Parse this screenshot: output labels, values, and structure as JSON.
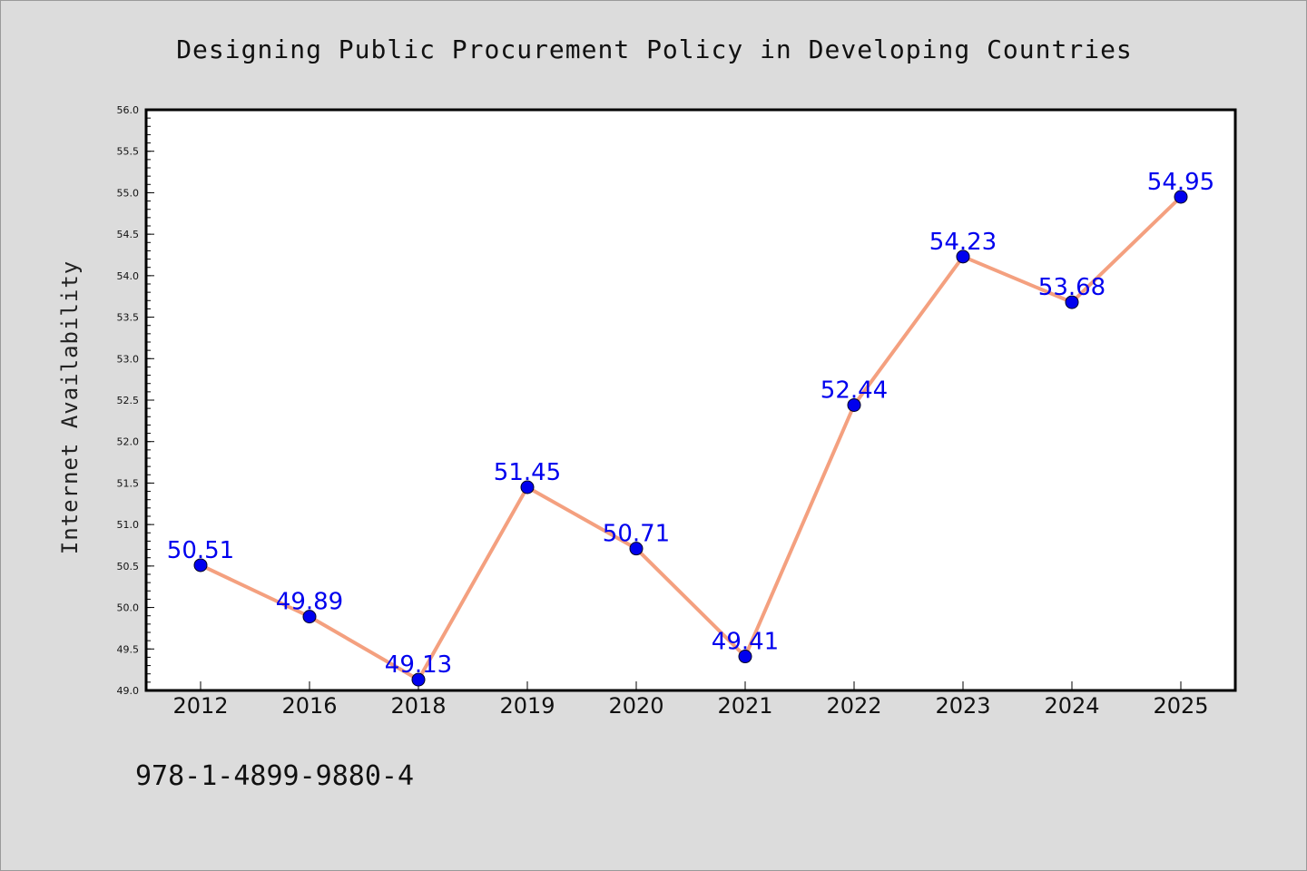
{
  "colors": {
    "background": "#dcdcdc",
    "plot_background": "#ffffff",
    "line": "#f4a07f",
    "marker": "#0000ee",
    "label": "#0000ee",
    "axis": "#000000"
  },
  "footer": {
    "isbn": "978-1-4899-9880-4"
  },
  "chart_data": {
    "type": "line",
    "title": "Designing Public Procurement Policy in Developing Countries",
    "xlabel": "",
    "ylabel": "Internet Availability",
    "categories": [
      "2012",
      "2016",
      "2018",
      "2019",
      "2020",
      "2021",
      "2022",
      "2023",
      "2024",
      "2025"
    ],
    "series": [
      {
        "values": [
          50.51,
          49.89,
          49.13,
          51.45,
          50.71,
          49.41,
          52.44,
          54.23,
          53.68,
          54.95
        ]
      }
    ],
    "data_labels": [
      "50.51",
      "49.89",
      "49.13",
      "51.45",
      "50.71",
      "49.41",
      "52.44",
      "54.23",
      "53.68",
      "54.95"
    ],
    "ylim": [
      49.0,
      56.0
    ],
    "yticks": [
      "49.0",
      "49.5",
      "50.0",
      "50.5",
      "51.0",
      "51.5",
      "52.0",
      "52.5",
      "53.0",
      "53.5",
      "54.0",
      "54.5",
      "55.0",
      "55.5",
      "56.0"
    ],
    "grid": false,
    "legend": "none"
  }
}
